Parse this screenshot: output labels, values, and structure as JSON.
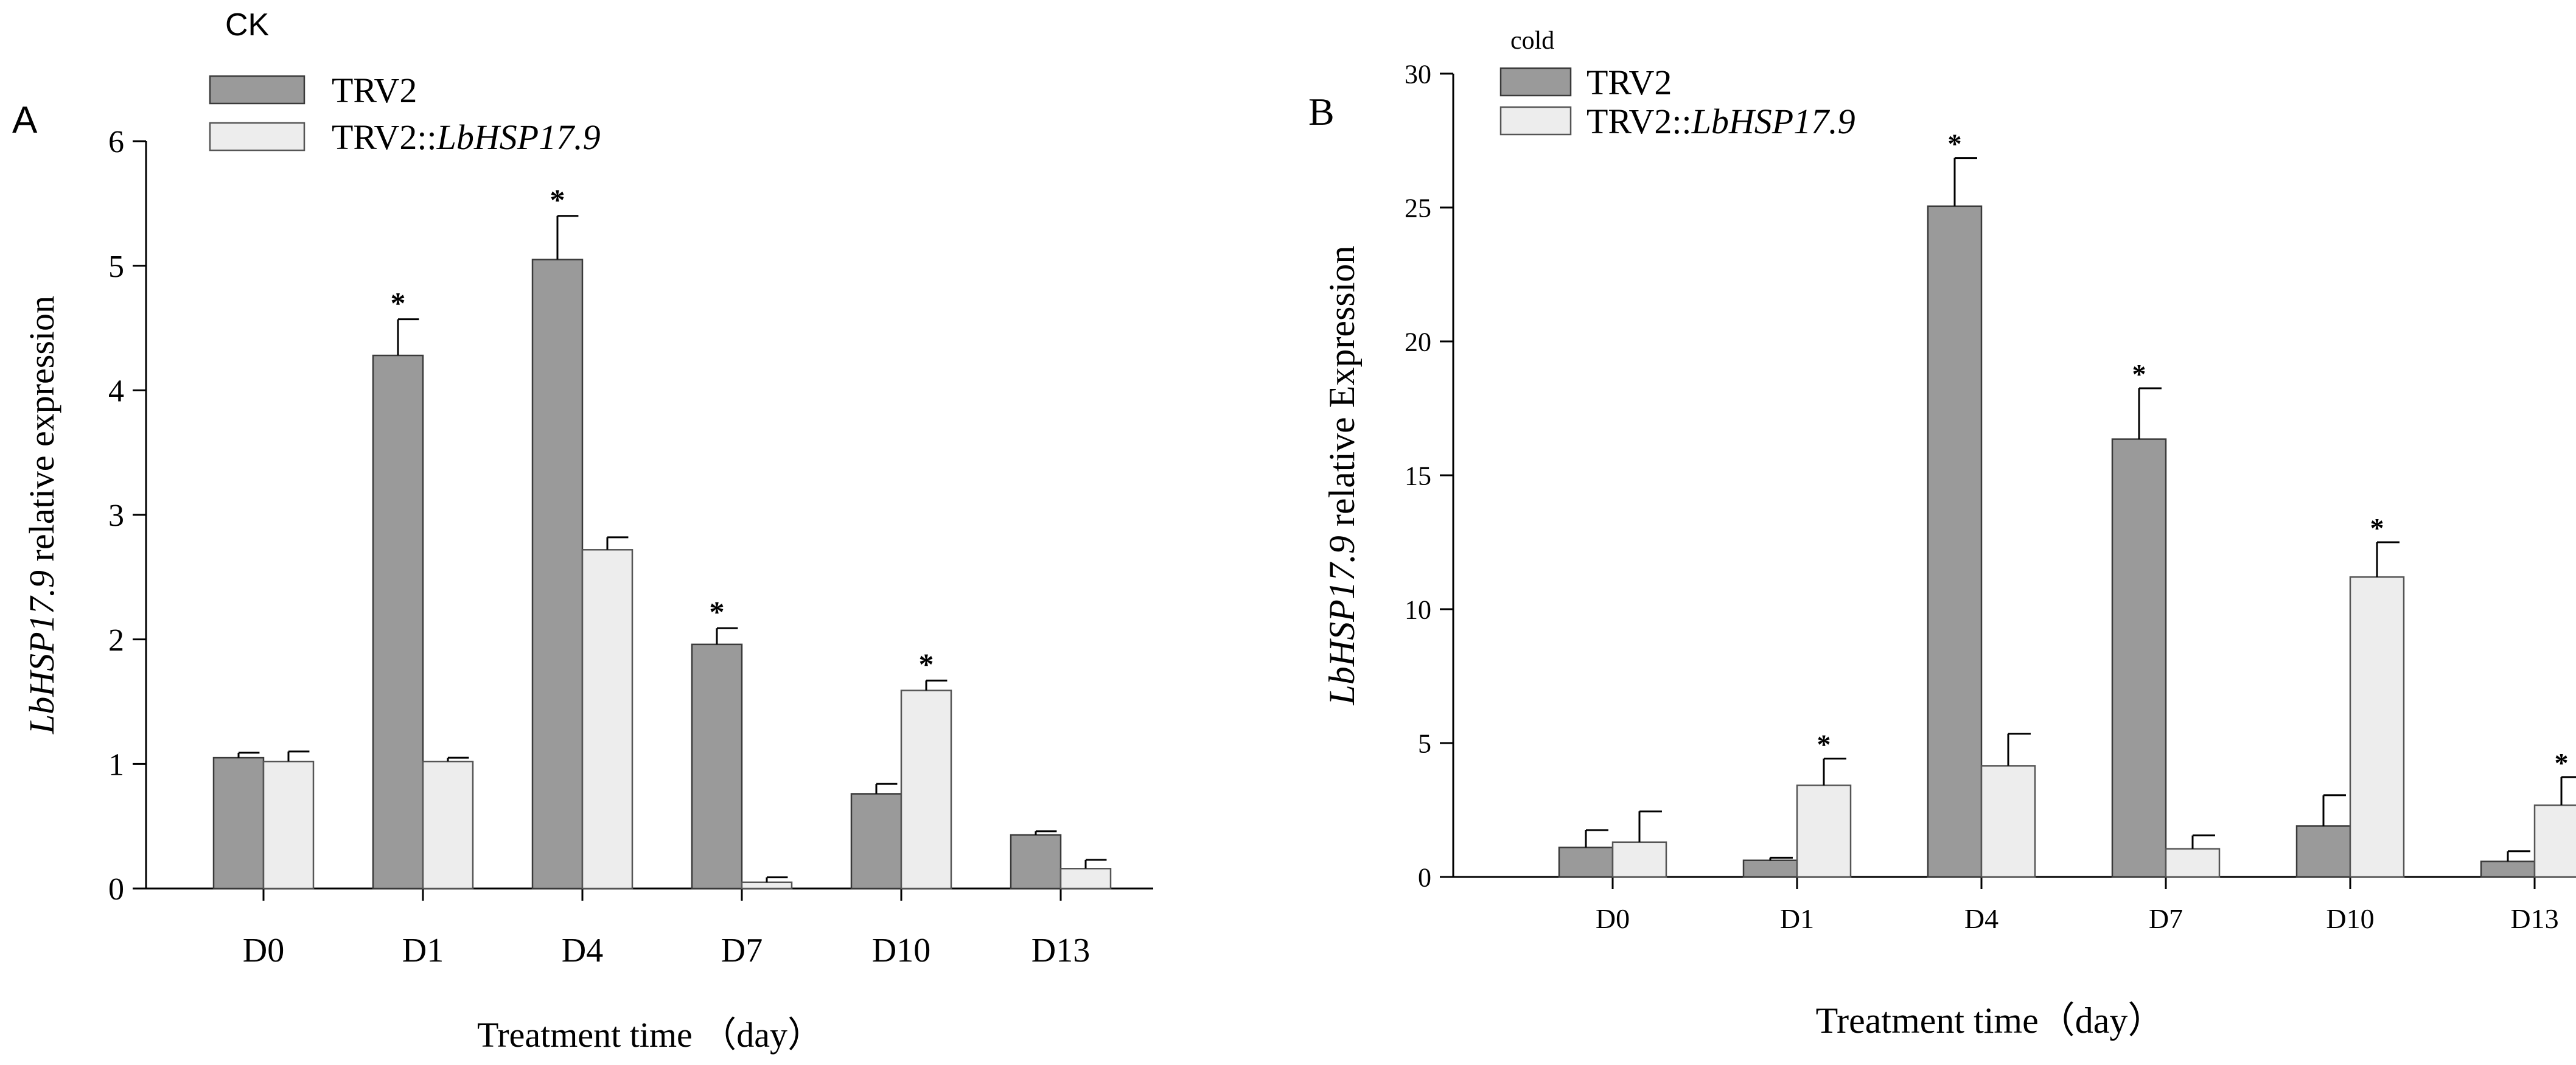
{
  "colors": {
    "trv2_fill": "#9a9a9a",
    "trv2_stroke": "#3a3a3a",
    "hsp_fill": "#ededed",
    "hsp_stroke": "#555555",
    "axis": "#000000"
  },
  "chart_data": [
    {
      "type": "bar",
      "panel_label": "A",
      "title": "CK",
      "xlabel": "Treatment time （day）",
      "ylabel_italic": "LbHSP17.9",
      "ylabel_rest": " relative expression",
      "categories": [
        "D0",
        "D1",
        "D4",
        "D7",
        "D10",
        "D13"
      ],
      "ylim": [
        0,
        6
      ],
      "yticks": [
        "0",
        "1",
        "2",
        "3",
        "4",
        "5",
        "6"
      ],
      "legend_position": "top-left",
      "series": [
        {
          "name": "TRV2",
          "name_plain": "TRV2",
          "name_italic": "",
          "values": [
            1.05,
            4.28,
            5.05,
            1.96,
            0.76,
            0.43
          ],
          "errors": [
            0.04,
            0.29,
            0.35,
            0.13,
            0.08,
            0.03
          ],
          "significant": [
            false,
            true,
            true,
            true,
            false,
            false
          ]
        },
        {
          "name": "TRV2::LbHSP17.9",
          "name_plain": "TRV2::",
          "name_italic": "LbHSP17.9",
          "values": [
            1.02,
            1.02,
            2.72,
            0.05,
            1.59,
            0.16
          ],
          "errors": [
            0.08,
            0.03,
            0.1,
            0.04,
            0.08,
            0.07
          ],
          "significant": [
            false,
            false,
            false,
            false,
            true,
            false
          ]
        }
      ],
      "significance_marker": "*"
    },
    {
      "type": "bar",
      "panel_label": "B",
      "title": "cold",
      "xlabel": "Treatment time（day）",
      "ylabel_italic": "LbHSP17.9",
      "ylabel_rest": " relative Expression",
      "categories": [
        "D0",
        "D1",
        "D4",
        "D7",
        "D10",
        "D13"
      ],
      "ylim": [
        0,
        30
      ],
      "yticks": [
        "0",
        "5",
        "10",
        "15",
        "20",
        "25",
        "30"
      ],
      "legend_position": "top-left",
      "series": [
        {
          "name": "TRV2",
          "name_plain": "TRV2",
          "name_italic": "",
          "values": [
            1.1,
            0.62,
            25.05,
            16.35,
            1.9,
            0.58
          ],
          "errors": [
            0.65,
            0.1,
            1.8,
            1.9,
            1.15,
            0.38
          ],
          "significant": [
            false,
            false,
            true,
            true,
            false,
            false
          ]
        },
        {
          "name": "TRV2::LbHSP17.9",
          "name_plain": "TRV2::",
          "name_italic": "LbHSP17.9",
          "values": [
            1.3,
            3.42,
            4.15,
            1.05,
            11.2,
            2.68
          ],
          "errors": [
            1.15,
            1.0,
            1.2,
            0.5,
            1.3,
            1.05
          ],
          "significant": [
            false,
            true,
            false,
            false,
            true,
            true
          ]
        }
      ],
      "significance_marker": "*"
    }
  ]
}
